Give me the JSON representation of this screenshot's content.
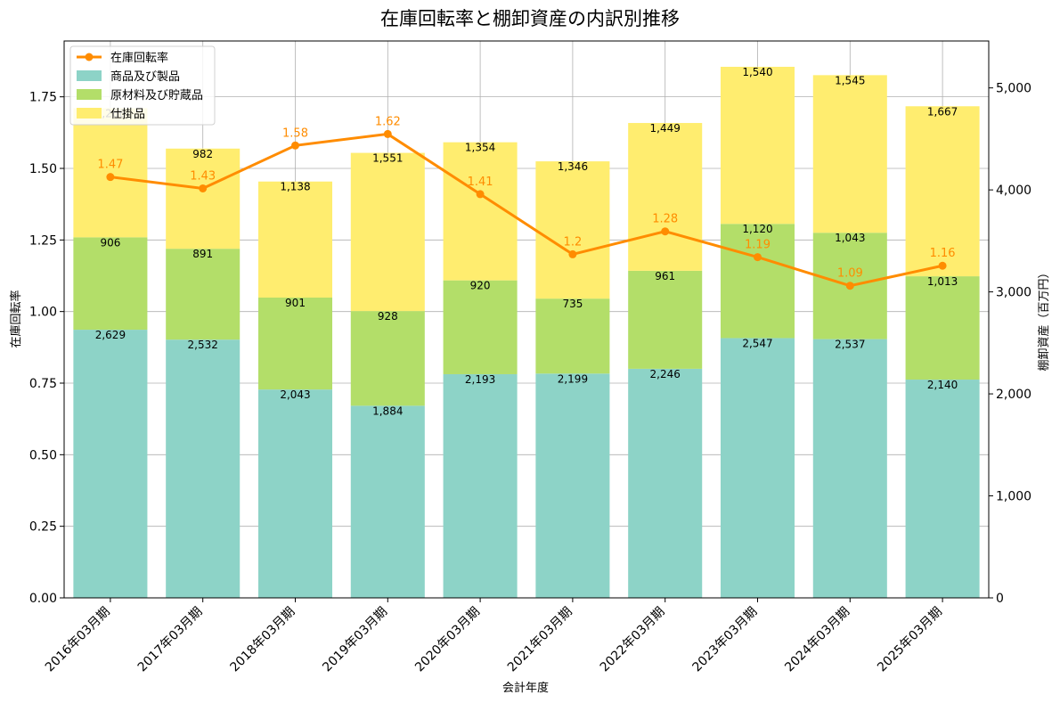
{
  "chart_data": {
    "type": "bar",
    "title": "在庫回転率と棚卸資産の内訳別推移",
    "xlabel": "会計年度",
    "ylabel_left": "在庫回転率",
    "ylabel_right": "棚卸資産（百万円）",
    "categories": [
      "2016年03月期",
      "2017年03月期",
      "2018年03月期",
      "2019年03月期",
      "2020年03月期",
      "2021年03月期",
      "2022年03月期",
      "2023年03月期",
      "2024年03月期",
      "2025年03月期"
    ],
    "stacked_series": [
      {
        "name": "商品及び製品",
        "color": "#8dd3c7",
        "values": [
          2629,
          2532,
          2043,
          1884,
          2193,
          2199,
          2246,
          2547,
          2537,
          2140
        ]
      },
      {
        "name": "原材料及び貯蔵品",
        "color": "#b3de69",
        "values": [
          906,
          891,
          901,
          928,
          920,
          735,
          961,
          1120,
          1043,
          1013
        ]
      },
      {
        "name": "仕掛品",
        "color": "#ffed6f",
        "values": [
          1266,
          982,
          1138,
          1551,
          1354,
          1346,
          1449,
          1540,
          1545,
          1667
        ]
      }
    ],
    "line_series": {
      "name": "在庫回転率",
      "color": "#ff8c00",
      "values": [
        1.47,
        1.43,
        1.58,
        1.62,
        1.41,
        1.2,
        1.28,
        1.19,
        1.09,
        1.16
      ]
    },
    "left_axis": {
      "min": 0,
      "max": 1.945,
      "ticks": [
        0,
        0.25,
        0.5,
        0.75,
        1.0,
        1.25,
        1.5,
        1.75
      ],
      "tick_labels": [
        "0.00",
        "0.25",
        "0.50",
        "0.75",
        "1.00",
        "1.25",
        "1.50",
        "1.75"
      ]
    },
    "right_axis": {
      "min": 0,
      "max": 5460,
      "ticks": [
        0,
        1000,
        2000,
        3000,
        4000,
        5000
      ],
      "tick_labels": [
        "0",
        "1,000",
        "2,000",
        "3,000",
        "4,000",
        "5,000"
      ]
    },
    "grid": true,
    "legend_position": "top-left"
  }
}
